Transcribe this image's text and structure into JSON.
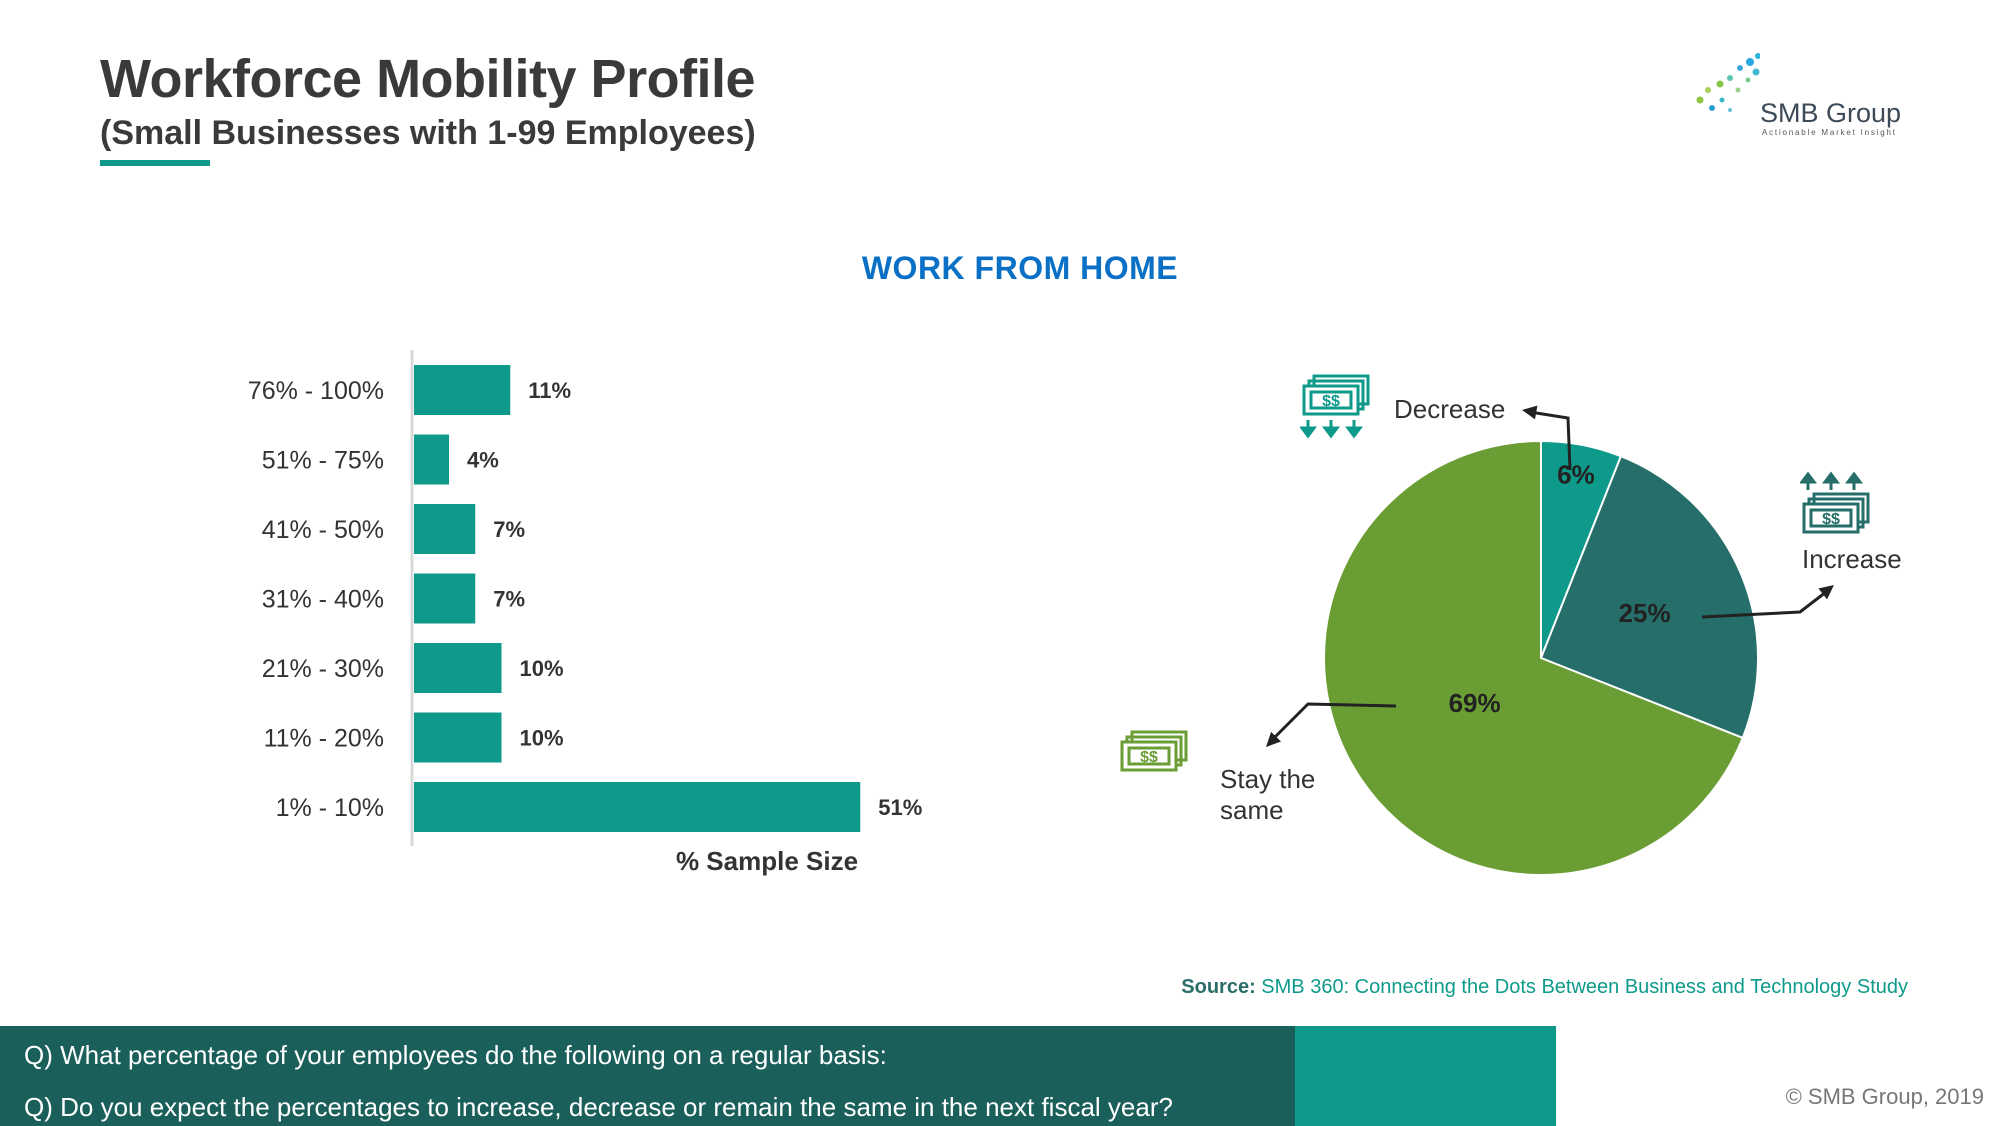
{
  "header": {
    "title": "Workforce Mobility Profile",
    "subtitle": "(Small Businesses with 1-99 Employees)"
  },
  "logo": {
    "name": "SMB Group",
    "tagline": "Actionable Market Insight"
  },
  "chart_heading": "WORK FROM HOME",
  "chart_data": [
    {
      "type": "bar",
      "orientation": "horizontal",
      "categories": [
        "76% - 100%",
        "51% - 75%",
        "41% - 50%",
        "31% - 40%",
        "21% - 30%",
        "11% - 20%",
        "1% - 10%"
      ],
      "values": [
        11,
        4,
        7,
        7,
        10,
        10,
        51
      ],
      "value_labels": [
        "11%",
        "4%",
        "7%",
        "7%",
        "10%",
        "10%",
        "51%"
      ],
      "xlabel": "% Sample Size",
      "xlim": [
        0,
        55
      ],
      "color": "#0e9a8a",
      "grid": false
    },
    {
      "type": "pie",
      "labels": [
        "Decrease",
        "Increase",
        "Stay the same"
      ],
      "values": [
        6,
        25,
        69
      ],
      "value_labels": [
        "6%",
        "25%",
        "69%"
      ],
      "colors": [
        "#0e9a8a",
        "#256e69",
        "#6a9e35"
      ],
      "icons": [
        "money-down-icon",
        "money-up-icon",
        "money-stack-icon"
      ]
    }
  ],
  "source": {
    "label": "Source:",
    "text": "SMB 360: Connecting the Dots Between Business and Technology Study"
  },
  "questions": [
    "Q) What percentage of your employees do the following on a regular basis:",
    "Q) Do you expect the percentages to increase, decrease or remain the same in the next fiscal year?"
  ],
  "copyright": "© SMB Group, 2019"
}
